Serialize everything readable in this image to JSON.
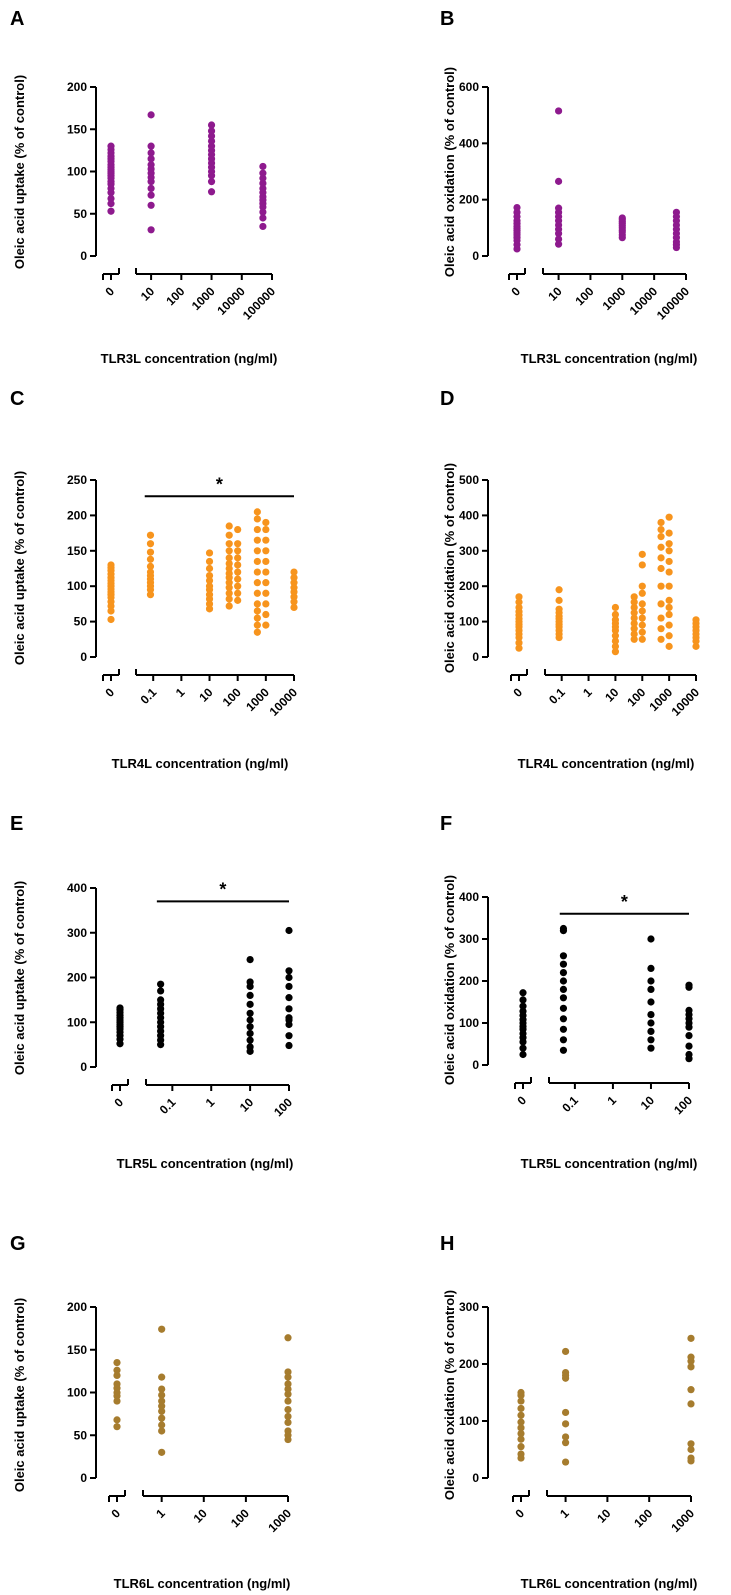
{
  "colors": {
    "tlr3": "#8e1a8e",
    "tlr4": "#f7941d",
    "tlr5": "#000000",
    "tlr6": "#a67c2e"
  },
  "chart_data": [
    {
      "panel": "A",
      "type": "scatter",
      "color_key": "tlr3",
      "ylabel": "Oleic acid uptake (% of control)",
      "xlabel": "TLR3L concentration (ng/ml)",
      "ylim": [
        0,
        200
      ],
      "yticks": [
        0,
        50,
        100,
        150,
        200
      ],
      "xscale": "log",
      "xlim": [
        5,
        100000
      ],
      "xticks": [
        10,
        100,
        1000,
        10000,
        100000
      ],
      "xtick_labels": [
        "10",
        "100",
        "1000",
        "10000",
        "100000"
      ],
      "zero_label": "0",
      "groups": [
        {
          "x": 0,
          "y": [
            53,
            62,
            68,
            75,
            80,
            85,
            88,
            92,
            95,
            98,
            100,
            102,
            105,
            108,
            112,
            115,
            118,
            122,
            126,
            130
          ]
        },
        {
          "x": 10,
          "y": [
            31,
            60,
            72,
            80,
            88,
            93,
            98,
            103,
            108,
            115,
            122,
            130,
            167
          ]
        },
        {
          "x": 1000,
          "y": [
            76,
            88,
            95,
            100,
            105,
            110,
            115,
            120,
            125,
            130,
            136,
            142,
            148,
            155
          ]
        },
        {
          "x": 50000,
          "y": [
            35,
            45,
            52,
            58,
            62,
            66,
            70,
            75,
            80,
            86,
            92,
            98,
            106
          ]
        }
      ],
      "significance": null
    },
    {
      "panel": "B",
      "type": "scatter",
      "color_key": "tlr3",
      "ylabel": "Oleic acid oxidation (% of control)",
      "xlabel": "TLR3L concentration (ng/ml)",
      "ylim": [
        0,
        600
      ],
      "yticks": [
        0,
        200,
        400,
        600
      ],
      "xscale": "log",
      "xlim": [
        5,
        100000
      ],
      "xticks": [
        10,
        100,
        1000,
        10000,
        100000
      ],
      "xtick_labels": [
        "10",
        "100",
        "1000",
        "10000",
        "100000"
      ],
      "zero_label": "0",
      "groups": [
        {
          "x": 0,
          "y": [
            25,
            40,
            55,
            65,
            75,
            82,
            90,
            98,
            105,
            115,
            125,
            140,
            155,
            172
          ]
        },
        {
          "x": 10,
          "y": [
            42,
            60,
            80,
            95,
            110,
            125,
            140,
            155,
            170,
            265,
            515
          ]
        },
        {
          "x": 1000,
          "y": [
            65,
            75,
            85,
            92,
            100,
            108,
            115,
            122,
            130,
            135
          ]
        },
        {
          "x": 50000,
          "y": [
            30,
            40,
            50,
            65,
            80,
            95,
            110,
            125,
            140,
            155
          ]
        }
      ],
      "significance": null
    },
    {
      "panel": "C",
      "type": "scatter",
      "color_key": "tlr4",
      "ylabel": "Oleic acid uptake (% of control)",
      "xlabel": "TLR4L concentration (ng/ml)",
      "ylim": [
        0,
        250
      ],
      "yticks": [
        0,
        50,
        100,
        150,
        200,
        250
      ],
      "xscale": "log",
      "xlim": [
        0.04,
        10000
      ],
      "xticks": [
        0.1,
        1,
        10,
        100,
        1000,
        10000
      ],
      "xtick_labels": [
        "0.1",
        "1",
        "10",
        "100",
        "1000",
        "10000"
      ],
      "zero_label": "0",
      "groups": [
        {
          "x": 0,
          "y": [
            53,
            65,
            72,
            78,
            84,
            88,
            92,
            96,
            100,
            104,
            108,
            112,
            117,
            122,
            126,
            130
          ]
        },
        {
          "x": 0.08,
          "y": [
            88,
            95,
            100,
            105,
            110,
            115,
            120,
            128,
            138,
            148,
            160,
            172
          ]
        },
        {
          "x": 10,
          "y": [
            68,
            75,
            82,
            88,
            95,
            100,
            108,
            115,
            125,
            135,
            147
          ]
        },
        {
          "x": 50,
          "y": [
            72,
            82,
            90,
            98,
            105,
            112,
            118,
            125,
            132,
            140,
            150,
            160,
            172,
            185
          ]
        },
        {
          "x": 100,
          "y": [
            80,
            90,
            100,
            110,
            120,
            130,
            140,
            150,
            160,
            180
          ]
        },
        {
          "x": 500,
          "y": [
            35,
            45,
            55,
            65,
            75,
            90,
            105,
            120,
            135,
            150,
            165,
            180,
            195,
            205
          ]
        },
        {
          "x": 1000,
          "y": [
            45,
            60,
            75,
            90,
            105,
            120,
            135,
            150,
            165,
            180,
            190
          ]
        },
        {
          "x": 10000,
          "y": [
            70,
            78,
            85,
            92,
            98,
            105,
            112,
            120
          ]
        }
      ],
      "significance": {
        "label": "*",
        "x_from": 0.05,
        "x_to": 10000,
        "y": 227
      }
    },
    {
      "panel": "D",
      "type": "scatter",
      "color_key": "tlr4",
      "ylabel": "Oleic acid oxidation (% of control)",
      "xlabel": "TLR4L concentration (ng/ml)",
      "ylim": [
        0,
        500
      ],
      "yticks": [
        0,
        100,
        200,
        300,
        400,
        500
      ],
      "xscale": "log",
      "xlim": [
        0.04,
        10000
      ],
      "xticks": [
        0.1,
        1,
        10,
        100,
        1000,
        10000
      ],
      "xtick_labels": [
        "0.1",
        "1",
        "10",
        "100",
        "1000",
        "10000"
      ],
      "zero_label": "0",
      "groups": [
        {
          "x": 0,
          "y": [
            25,
            40,
            55,
            65,
            75,
            85,
            92,
            100,
            108,
            118,
            128,
            140,
            155,
            170
          ]
        },
        {
          "x": 0.08,
          "y": [
            55,
            65,
            75,
            85,
            92,
            100,
            108,
            115,
            125,
            135,
            160,
            190
          ]
        },
        {
          "x": 10,
          "y": [
            15,
            30,
            45,
            60,
            75,
            85,
            95,
            105,
            120,
            140
          ]
        },
        {
          "x": 50,
          "y": [
            50,
            65,
            80,
            95,
            110,
            125,
            140,
            155,
            170
          ]
        },
        {
          "x": 100,
          "y": [
            50,
            70,
            90,
            110,
            130,
            150,
            180,
            200,
            260,
            290
          ]
        },
        {
          "x": 500,
          "y": [
            50,
            80,
            110,
            150,
            200,
            250,
            280,
            310,
            340,
            360,
            380
          ]
        },
        {
          "x": 1000,
          "y": [
            30,
            60,
            90,
            120,
            140,
            160,
            200,
            240,
            270,
            300,
            320,
            350,
            395
          ]
        },
        {
          "x": 10000,
          "y": [
            30,
            45,
            55,
            65,
            75,
            85,
            95,
            105
          ]
        }
      ],
      "significance": null
    },
    {
      "panel": "E",
      "type": "scatter",
      "color_key": "tlr5",
      "ylabel": "Oleic acid uptake (% of control)",
      "xlabel": "TLR5L concentration (ng/ml)",
      "ylim": [
        0,
        400
      ],
      "yticks": [
        0,
        100,
        200,
        300,
        400
      ],
      "xscale": "log",
      "xlim": [
        0.03,
        100
      ],
      "xticks": [
        0.1,
        1,
        10,
        100
      ],
      "xtick_labels": [
        "0.1",
        "1",
        "10",
        "100"
      ],
      "zero_label": "0",
      "groups": [
        {
          "x": 0,
          "y": [
            52,
            62,
            70,
            78,
            85,
            90,
            95,
            100,
            105,
            110,
            116,
            122,
            128,
            132
          ]
        },
        {
          "x": 0.05,
          "y": [
            50,
            60,
            70,
            80,
            90,
            100,
            110,
            120,
            130,
            140,
            150,
            170,
            185
          ]
        },
        {
          "x": 10,
          "y": [
            35,
            45,
            60,
            75,
            90,
            105,
            120,
            140,
            160,
            180,
            190,
            240
          ]
        },
        {
          "x": 100,
          "y": [
            48,
            70,
            95,
            105,
            110,
            130,
            155,
            180,
            200,
            215,
            305
          ]
        }
      ],
      "significance": {
        "label": "*",
        "x_from": 0.04,
        "x_to": 100,
        "y": 370
      }
    },
    {
      "panel": "F",
      "type": "scatter",
      "color_key": "tlr5",
      "ylabel": "Oleic acid oxidation (% of control)",
      "xlabel": "TLR5L concentration (ng/ml)",
      "ylim": [
        0,
        400
      ],
      "yticks": [
        0,
        100,
        200,
        300,
        400
      ],
      "xscale": "log",
      "xlim": [
        0.03,
        100
      ],
      "xticks": [
        0.1,
        1,
        10,
        100
      ],
      "xtick_labels": [
        "0.1",
        "1",
        "10",
        "100"
      ],
      "zero_label": "0",
      "groups": [
        {
          "x": 0,
          "y": [
            25,
            40,
            55,
            65,
            75,
            85,
            92,
            100,
            108,
            118,
            128,
            140,
            155,
            172
          ]
        },
        {
          "x": 0.05,
          "y": [
            35,
            60,
            85,
            110,
            135,
            160,
            180,
            200,
            220,
            240,
            260,
            320,
            325
          ]
        },
        {
          "x": 10,
          "y": [
            40,
            60,
            80,
            100,
            120,
            150,
            180,
            200,
            230,
            300
          ]
        },
        {
          "x": 100,
          "y": [
            15,
            25,
            45,
            70,
            90,
            100,
            110,
            120,
            130,
            185,
            190
          ]
        }
      ],
      "significance": {
        "label": "*",
        "x_from": 0.04,
        "x_to": 100,
        "y": 360
      }
    },
    {
      "panel": "G",
      "type": "scatter",
      "color_key": "tlr6",
      "ylabel": "Oleic acid uptake (% of control)",
      "xlabel": "TLR6L concentration (ng/ml)",
      "ylim": [
        0,
        200
      ],
      "yticks": [
        0,
        50,
        100,
        150,
        200
      ],
      "xscale": "log",
      "xlim": [
        0.5,
        1000
      ],
      "xticks": [
        1,
        10,
        100,
        1000
      ],
      "xtick_labels": [
        "1",
        "10",
        "100",
        "1000"
      ],
      "zero_label": "0",
      "groups": [
        {
          "x": 0,
          "y": [
            60,
            68,
            90,
            96,
            100,
            105,
            110,
            120,
            126,
            135
          ]
        },
        {
          "x": 1,
          "y": [
            30,
            55,
            62,
            70,
            78,
            84,
            90,
            97,
            104,
            118,
            174
          ]
        },
        {
          "x": 1000,
          "y": [
            45,
            50,
            55,
            65,
            72,
            80,
            90,
            98,
            104,
            110,
            118,
            124,
            164
          ]
        }
      ],
      "significance": null
    },
    {
      "panel": "H",
      "type": "scatter",
      "color_key": "tlr6",
      "ylabel": "Oleic acid oxidation (% of control)",
      "xlabel": "TLR6L concentration (ng/ml)",
      "ylim": [
        0,
        300
      ],
      "yticks": [
        0,
        100,
        200,
        300
      ],
      "xscale": "log",
      "xlim": [
        0.5,
        1000
      ],
      "xticks": [
        1,
        10,
        100,
        1000
      ],
      "xtick_labels": [
        "1",
        "10",
        "100",
        "1000"
      ],
      "zero_label": "0",
      "groups": [
        {
          "x": 0,
          "y": [
            35,
            42,
            55,
            68,
            78,
            88,
            98,
            110,
            122,
            135,
            145,
            150
          ]
        },
        {
          "x": 1,
          "y": [
            28,
            62,
            72,
            95,
            115,
            175,
            180,
            185,
            222
          ]
        },
        {
          "x": 1000,
          "y": [
            30,
            35,
            50,
            60,
            130,
            155,
            195,
            205,
            212,
            245
          ]
        }
      ],
      "significance": null
    }
  ]
}
